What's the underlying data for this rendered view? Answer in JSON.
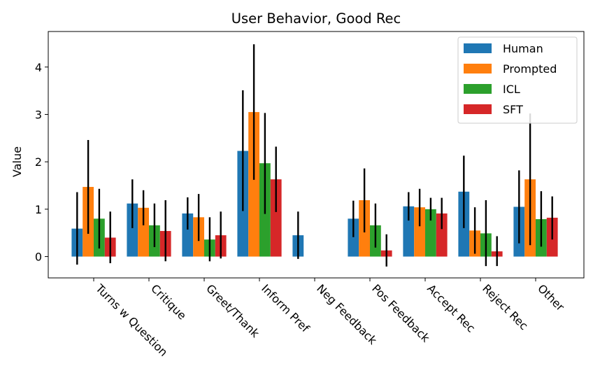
{
  "chart_data": {
    "type": "bar",
    "title": "User Behavior, Good Rec",
    "xlabel": "",
    "ylabel": "Value",
    "ylim": [
      -0.45,
      4.75
    ],
    "yticks": [
      0,
      1,
      2,
      3,
      4
    ],
    "grid": false,
    "legend_position": "top-right",
    "categories": [
      "Turns w Question",
      "Critique",
      "Greet/Thank",
      "Inform Pref",
      "Neg Feedback",
      "Pos Feedback",
      "Accept Rec",
      "Reject Rec",
      "Other"
    ],
    "series": [
      {
        "name": "Human",
        "color": "#1f77b4",
        "values": [
          0.59,
          1.12,
          0.91,
          2.23,
          0.45,
          0.8,
          1.06,
          1.37,
          1.05
        ],
        "err_low": [
          -0.17,
          0.6,
          0.57,
          0.96,
          -0.05,
          0.41,
          0.76,
          0.6,
          0.28
        ],
        "err_high": [
          1.36,
          1.63,
          1.25,
          3.51,
          0.95,
          1.18,
          1.36,
          2.13,
          1.82
        ]
      },
      {
        "name": "Prompted",
        "color": "#ff7f0e",
        "values": [
          1.47,
          1.03,
          0.83,
          3.05,
          0.0,
          1.19,
          1.04,
          0.55,
          1.63
        ],
        "err_low": [
          0.48,
          0.66,
          0.33,
          1.62,
          0.0,
          0.51,
          0.64,
          0.06,
          0.24
        ],
        "err_high": [
          2.46,
          1.4,
          1.32,
          4.48,
          0.0,
          1.86,
          1.43,
          1.04,
          3.02
        ]
      },
      {
        "name": "ICL",
        "color": "#2ca02c",
        "values": [
          0.8,
          0.66,
          0.36,
          1.97,
          0.0,
          0.66,
          1.0,
          0.49,
          0.79
        ],
        "err_low": [
          0.17,
          0.2,
          -0.1,
          0.9,
          0.0,
          0.19,
          0.76,
          -0.2,
          0.21
        ],
        "err_high": [
          1.43,
          1.12,
          0.83,
          3.03,
          0.0,
          1.12,
          1.24,
          1.19,
          1.38
        ]
      },
      {
        "name": "SFT",
        "color": "#d62728",
        "values": [
          0.4,
          0.54,
          0.45,
          1.63,
          0.0,
          0.13,
          0.91,
          0.11,
          0.82
        ],
        "err_low": [
          -0.14,
          -0.1,
          -0.04,
          0.94,
          0.0,
          -0.21,
          0.58,
          -0.2,
          0.36
        ],
        "err_high": [
          0.95,
          1.19,
          0.95,
          2.32,
          0.0,
          0.47,
          1.24,
          0.43,
          1.27
        ]
      }
    ]
  }
}
